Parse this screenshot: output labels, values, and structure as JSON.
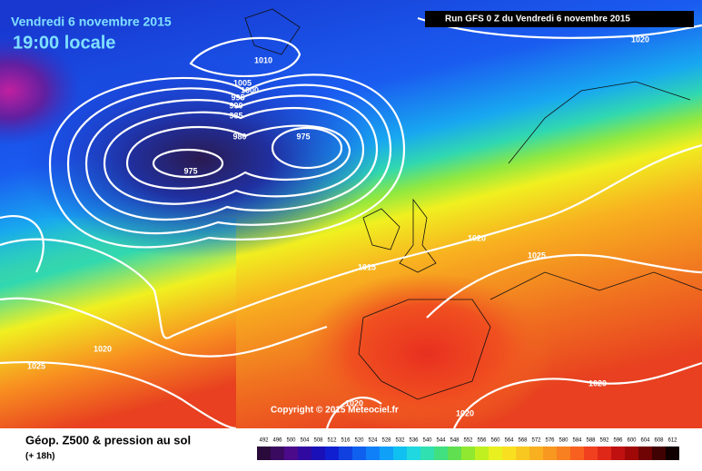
{
  "header": {
    "date": "Vendredi 6 novembre 2015",
    "time": "19:00 locale",
    "run": "Run GFS 0 Z du Vendredi 6 novembre 2015"
  },
  "isobar_labels": [
    1010,
    1005,
    1000,
    995,
    990,
    985,
    980,
    975,
    975,
    1020,
    1020,
    1025,
    1015,
    1020,
    1025,
    1020,
    1020,
    1020
  ],
  "copyright": "Copyright © 2015 Meteociel.fr",
  "footer": {
    "title": "Géop. Z500 & pression au sol",
    "lead": "(+ 18h)"
  },
  "scale": {
    "labels": [
      492,
      496,
      500,
      504,
      508,
      512,
      516,
      520,
      524,
      528,
      532,
      536,
      540,
      544,
      548,
      552,
      556,
      560,
      564,
      568,
      572,
      576,
      580,
      584,
      588,
      592,
      596,
      600,
      604,
      608,
      612
    ],
    "colors": [
      "#2a0a3a",
      "#3a0a60",
      "#4a0a8a",
      "#300aa0",
      "#1a10b8",
      "#1020d0",
      "#1040e0",
      "#1060f0",
      "#1080f8",
      "#10a0f8",
      "#10c0f0",
      "#20d8e0",
      "#30e0b0",
      "#40e080",
      "#60e050",
      "#90e830",
      "#c0f020",
      "#e8f020",
      "#f8e020",
      "#f8c820",
      "#f8b020",
      "#f89820",
      "#f88020",
      "#f86020",
      "#f04020",
      "#e02818",
      "#c01010",
      "#a00808",
      "#700404",
      "#400202",
      "#100000"
    ]
  }
}
